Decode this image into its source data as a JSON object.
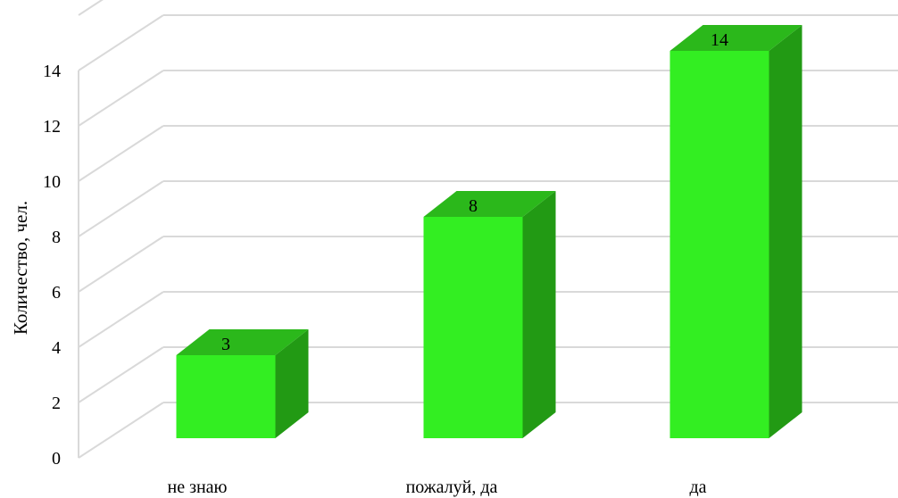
{
  "chart_data": {
    "type": "bar",
    "style": "3d-column",
    "categories": [
      "не знаю",
      "пожалуй, да",
      "да"
    ],
    "values": [
      3,
      8,
      14
    ],
    "data_labels": [
      "3",
      "8",
      "14"
    ],
    "title": "",
    "xlabel": "",
    "ylabel": "Количество, чел.",
    "ylim": [
      0,
      14
    ],
    "yticks": [
      "0",
      "2",
      "4",
      "6",
      "8",
      "10",
      "12",
      "14"
    ],
    "grid": true,
    "legend": "none",
    "colors": {
      "front": "#33ee22",
      "top": "#2bb81b",
      "side": "#229a14",
      "grid": "#d9d9d9"
    }
  }
}
